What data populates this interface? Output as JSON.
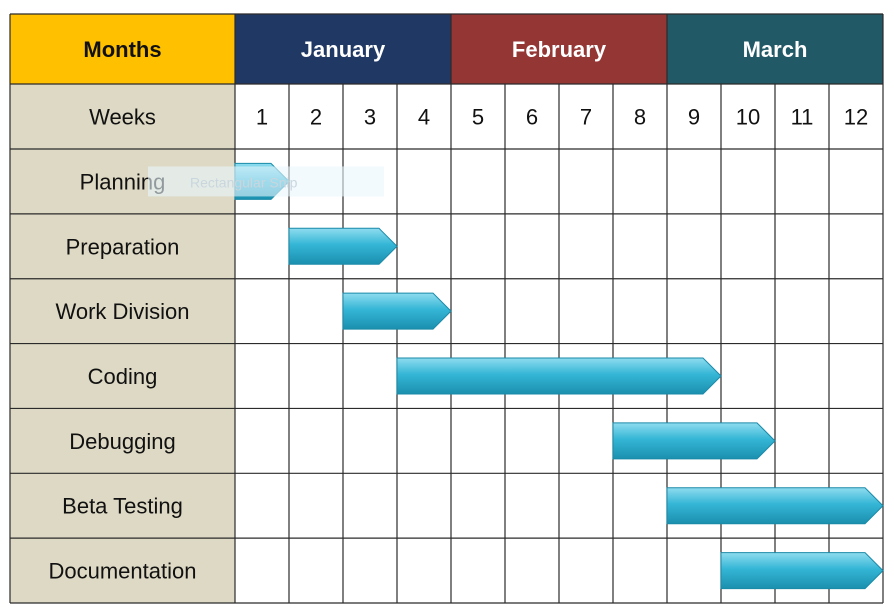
{
  "months_header": "Months",
  "weeks_header": "Weeks",
  "months": [
    {
      "label": "January",
      "color": "#1f3864",
      "weeks": [
        1,
        4
      ]
    },
    {
      "label": "February",
      "color": "#943634",
      "weeks": [
        5,
        8
      ]
    },
    {
      "label": "March",
      "color": "#215967",
      "weeks": [
        9,
        12
      ]
    }
  ],
  "colors": {
    "months_header_bg": "#ffc000",
    "label_column_bg": "#ddd9c4",
    "bar": "#31b4d4",
    "grid": "#2b2b2b"
  },
  "overlay_text": "Rectangular Snip",
  "chart_data": {
    "type": "gantt",
    "x_unit": "week",
    "xlim": [
      1,
      12
    ],
    "weeks": [
      1,
      2,
      3,
      4,
      5,
      6,
      7,
      8,
      9,
      10,
      11,
      12
    ],
    "tasks": [
      {
        "name": "Planning",
        "start": 1,
        "end": 1
      },
      {
        "name": "Preparation",
        "start": 2,
        "end": 3
      },
      {
        "name": "Work Division",
        "start": 3,
        "end": 4
      },
      {
        "name": "Coding",
        "start": 4,
        "end": 9
      },
      {
        "name": "Debugging",
        "start": 8,
        "end": 10
      },
      {
        "name": "Beta Testing",
        "start": 9,
        "end": 12
      },
      {
        "name": "Documentation",
        "start": 10,
        "end": 12
      }
    ]
  }
}
